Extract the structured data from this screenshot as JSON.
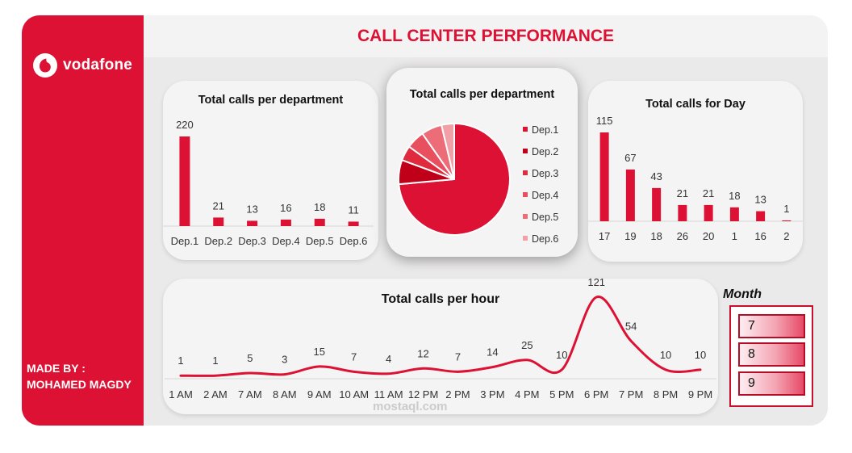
{
  "header": {
    "title": "CALL CENTER PERFORMANCE"
  },
  "sidebar": {
    "logo_text": "vodafone",
    "made_by_label": "MADE BY :",
    "author": "MOHAMED MAGDY"
  },
  "colors": {
    "brand": "#dc1133",
    "bar": "#dc1133",
    "background": "#ebeaea"
  },
  "chart_data": [
    {
      "type": "bar",
      "title": "Total calls per department",
      "categories": [
        "Dep.1",
        "Dep.2",
        "Dep.3",
        "Dep.4",
        "Dep.5",
        "Dep.6"
      ],
      "values": [
        220,
        21,
        13,
        16,
        18,
        11
      ],
      "data_labels": true,
      "grid": false
    },
    {
      "type": "pie",
      "title": "Total calls per department",
      "labels": [
        "Dep.1",
        "Dep.2",
        "Dep.3",
        "Dep.4",
        "Dep.5",
        "Dep.6"
      ],
      "values": [
        220,
        21,
        13,
        16,
        18,
        11
      ],
      "colors": [
        "#dc1133",
        "#c00018",
        "#e02b3f",
        "#e8505f",
        "#ec6c78",
        "#f2a0a8"
      ],
      "legend": "right"
    },
    {
      "type": "bar",
      "title": "Total calls for Day",
      "categories": [
        "17",
        "19",
        "18",
        "26",
        "20",
        "1",
        "16",
        "2"
      ],
      "values": [
        115,
        67,
        43,
        21,
        21,
        18,
        13,
        1
      ],
      "data_labels": true,
      "grid": false
    },
    {
      "type": "line",
      "title": "Total calls per hour",
      "categories": [
        "1 AM",
        "2 AM",
        "7 AM",
        "8 AM",
        "9 AM",
        "10 AM",
        "11 AM",
        "12 PM",
        "2 PM",
        "3 PM",
        "4 PM",
        "5 PM",
        "6 PM",
        "7 PM",
        "8 PM",
        "9 PM"
      ],
      "values": [
        1,
        1,
        5,
        3,
        15,
        7,
        4,
        12,
        7,
        14,
        25,
        10,
        121,
        54,
        10,
        10
      ],
      "smooth": true,
      "data_labels": true,
      "grid": false
    }
  ],
  "slicer": {
    "label": "Month",
    "items": [
      "7",
      "8",
      "9"
    ]
  },
  "watermark": {
    "text": "mostaql.com"
  }
}
